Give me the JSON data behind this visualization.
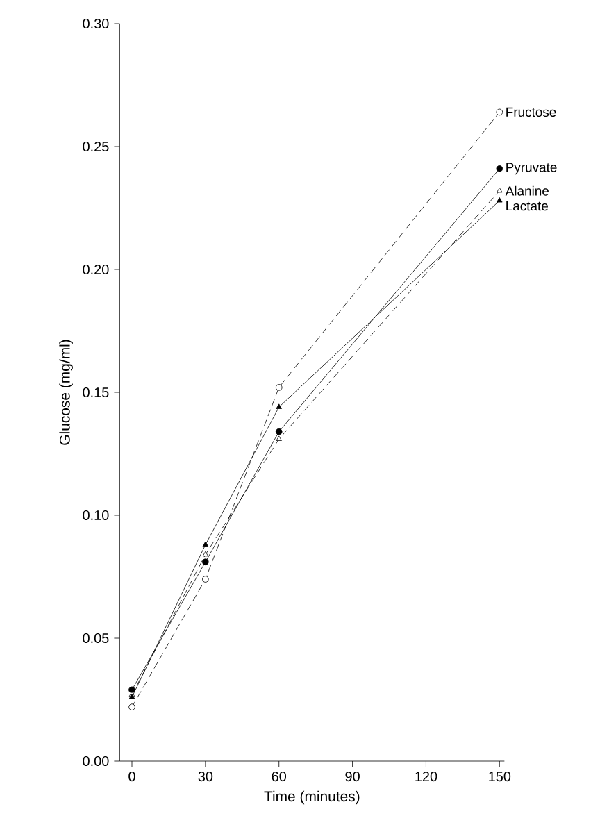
{
  "chart_data": {
    "type": "line",
    "xlabel": "Time (minutes)",
    "ylabel": "Glucose (mg/ml)",
    "x": [
      0,
      30,
      60,
      150
    ],
    "series": [
      {
        "name": "Fructose",
        "color": "#000000",
        "values": [
          0.022,
          0.074,
          0.152,
          0.264
        ],
        "marker": "circle",
        "line_style": "dashed"
      },
      {
        "name": "Pyruvate",
        "color": "#000000",
        "values": [
          0.029,
          0.081,
          0.134,
          0.241
        ],
        "marker": "circle",
        "line_style": "solid"
      },
      {
        "name": "Alanine",
        "color": "#000000",
        "values": [
          0.027,
          0.084,
          0.131,
          0.232
        ],
        "marker": "triangle",
        "line_style": "dashed"
      },
      {
        "name": "Lactate",
        "color": "#000000",
        "values": [
          0.026,
          0.088,
          0.144,
          0.228
        ],
        "marker": "triangle",
        "line_style": "solid"
      }
    ],
    "xlim": [
      -5,
      152
    ],
    "ylim": [
      0,
      0.3
    ],
    "xticks": [
      0,
      30,
      60,
      90,
      120,
      150
    ],
    "yticks": [
      {
        "value": 0,
        "label": "0.00"
      },
      {
        "value": 0.05,
        "label": "0.05"
      },
      {
        "value": 0.1,
        "label": "0.10"
      },
      {
        "value": 0.15,
        "label": "0.15"
      },
      {
        "value": 0.2,
        "label": "0.20"
      },
      {
        "value": 0.25,
        "label": "0.25"
      },
      {
        "value": 0.3,
        "label": "0.30"
      }
    ],
    "grid": false,
    "legend": false
  }
}
